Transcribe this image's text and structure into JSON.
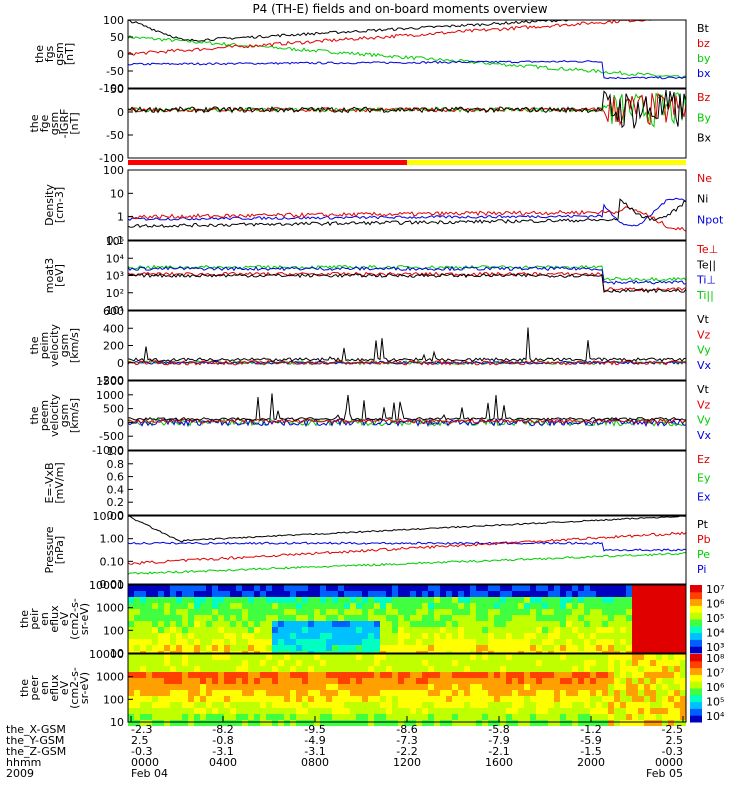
{
  "title": "P4 (TH-E) fields and on-board moments overview",
  "colors": {
    "black": "#000000",
    "red": "#e00000",
    "green": "#00cc00",
    "blue": "#0000e0",
    "yellow": "#ffff00"
  },
  "chart_data": [
    {
      "type": "line",
      "ylabel": [
        "the",
        "fgs",
        "gsm",
        "[nT]"
      ],
      "yticks": [
        "100",
        "50",
        "0",
        "-50",
        "-100"
      ],
      "legend": [
        {
          "name": "Bt",
          "color": "#000000"
        },
        {
          "name": "bz",
          "color": "#e00000"
        },
        {
          "name": "by",
          "color": "#00cc00"
        },
        {
          "name": "bx",
          "color": "#0000e0"
        }
      ],
      "ylim": [
        -100,
        100
      ]
    },
    {
      "type": "line",
      "ylabel": [
        "the",
        "fge",
        "gsm",
        "-IGRF",
        "[nT]"
      ],
      "yticks": [
        "50",
        "0",
        "-50",
        "-100"
      ],
      "legend": [
        {
          "name": "Bz",
          "color": "#e00000"
        },
        {
          "name": "By",
          "color": "#00cc00"
        },
        {
          "name": "Bx",
          "color": "#000000"
        }
      ],
      "ylim": [
        -120,
        60
      ]
    },
    {
      "type": "line",
      "ylabel": [
        "Density",
        "[cm-3]"
      ],
      "yticks": [
        "100",
        "10",
        "1",
        "0.1"
      ],
      "legend": [
        {
          "name": "Ne",
          "color": "#e00000"
        },
        {
          "name": "Ni",
          "color": "#000000"
        },
        {
          "name": "Npot",
          "color": "#0000e0"
        }
      ],
      "scale": "log"
    },
    {
      "type": "line",
      "ylabel": [
        "moat3",
        "[eV]"
      ],
      "yticks": [
        "10⁵",
        "10⁴",
        "10³",
        "10²",
        "10¹"
      ],
      "legend": [
        {
          "name": "Te⊥",
          "color": "#e00000"
        },
        {
          "name": "Te||",
          "color": "#000000"
        },
        {
          "name": "Ti⊥",
          "color": "#0000e0"
        },
        {
          "name": "Ti||",
          "color": "#00cc00"
        }
      ],
      "scale": "log"
    },
    {
      "type": "line",
      "ylabel": [
        "the",
        "peim",
        "velocity",
        "gsm",
        "[km/s]"
      ],
      "yticks": [
        "600",
        "400",
        "200",
        "0",
        "-200"
      ],
      "legend": [
        {
          "name": "Vt",
          "color": "#000000"
        },
        {
          "name": "Vz",
          "color": "#e00000"
        },
        {
          "name": "Vy",
          "color": "#00cc00"
        },
        {
          "name": "Vx",
          "color": "#0000e0"
        }
      ],
      "ylim": [
        -200,
        600
      ]
    },
    {
      "type": "line",
      "ylabel": [
        "the",
        "peem",
        "velocity",
        "gsm",
        "[km/s]"
      ],
      "yticks": [
        "1500",
        "1000",
        "500",
        "0",
        "-500",
        "-1000"
      ],
      "legend": [
        {
          "name": "Vt",
          "color": "#000000"
        },
        {
          "name": "Vz",
          "color": "#e00000"
        },
        {
          "name": "Vy",
          "color": "#00cc00"
        },
        {
          "name": "Vx",
          "color": "#0000e0"
        }
      ],
      "ylim": [
        -1000,
        1500
      ]
    },
    {
      "type": "line",
      "ylabel": [
        "E=-VxB",
        "[mV/m]"
      ],
      "yticks": [
        "1.0",
        "0.8",
        "0.6",
        "0.4",
        "0.2",
        "0.0"
      ],
      "legend": [
        {
          "name": "Ez",
          "color": "#e00000"
        },
        {
          "name": "Ey",
          "color": "#00cc00"
        },
        {
          "name": "Ex",
          "color": "#0000e0"
        }
      ],
      "ylim": [
        0,
        1
      ]
    },
    {
      "type": "line",
      "ylabel": [
        "Pressure",
        "[nPa]"
      ],
      "yticks": [
        "10.00",
        "1.00",
        "0.10",
        "0.01"
      ],
      "legend": [
        {
          "name": "Pt",
          "color": "#000000"
        },
        {
          "name": "Pb",
          "color": "#e00000"
        },
        {
          "name": "Pe",
          "color": "#00cc00"
        },
        {
          "name": "Pi",
          "color": "#0000e0"
        }
      ],
      "scale": "log"
    },
    {
      "type": "heatmap",
      "ylabel": [
        "the",
        "peir",
        "en",
        "eflux",
        "eV",
        "(cm2-s-",
        "sr-eV)"
      ],
      "yticks": [
        "10000",
        "1000",
        "100",
        "10"
      ],
      "colorbar": [
        "10⁷",
        "10⁶",
        "10⁵",
        "10⁴",
        "10³"
      ]
    },
    {
      "type": "heatmap",
      "ylabel": [
        "the",
        "peer",
        "en",
        "eflux",
        "eV",
        "(cm2-s-",
        "sr-eV)"
      ],
      "yticks": [
        "10000",
        "1000",
        "100",
        "10"
      ],
      "colorbar": [
        "10⁸",
        "10⁷",
        "10⁶",
        "10⁵",
        "10⁴"
      ]
    }
  ],
  "xaxis": {
    "rows": [
      {
        "name": "the_X-GSM",
        "values": [
          "-2.3",
          "-8.2",
          "-9.5",
          "-8.6",
          "-5.8",
          "-1.2",
          "-2.5"
        ]
      },
      {
        "name": "the_Y-GSM",
        "values": [
          "2.5",
          "-0.8",
          "-4.9",
          "-7.3",
          "-7.9",
          "-5.9",
          "2.5"
        ]
      },
      {
        "name": "the_Z-GSM",
        "values": [
          "-0.3",
          "-3.1",
          "-3.1",
          "-2.2",
          "-2.1",
          "-1.5",
          "-0.3"
        ]
      },
      {
        "name": "hhmm",
        "values": [
          "0000",
          "0400",
          "0800",
          "1200",
          "1600",
          "2000",
          "0000"
        ]
      },
      {
        "name": "2009",
        "values": [
          "Feb 04",
          "",
          "",
          "",
          "",
          "",
          "Feb 05"
        ]
      }
    ]
  }
}
